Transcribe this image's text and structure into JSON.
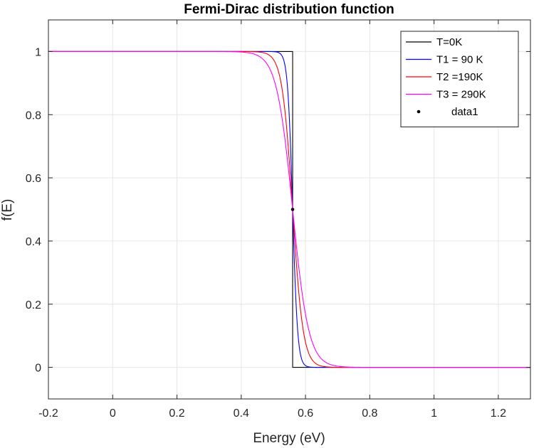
{
  "chart_data": {
    "type": "line",
    "title": "Fermi-Dirac distribution function",
    "xlabel": "Energy (eV)",
    "ylabel": "f(E)",
    "xlim": [
      -0.2,
      1.3
    ],
    "ylim": [
      -0.1,
      1.1
    ],
    "xticks": [
      -0.2,
      0,
      0.2,
      0.4,
      0.6,
      0.8,
      1,
      1.2
    ],
    "xtick_labels": [
      "-0.2",
      "0",
      "0.2",
      "0.4",
      "0.6",
      "0.8",
      "1",
      "1.2"
    ],
    "yticks": [
      0,
      0.2,
      0.4,
      0.6,
      0.8,
      1
    ],
    "ytick_labels": [
      "0",
      "0.2",
      "0.4",
      "0.6",
      "0.8",
      "1"
    ],
    "grid": true,
    "legend_position": "top-right",
    "fermi_energy_eV": 0.56,
    "series": [
      {
        "name": "T=0K",
        "temperature_K": 0,
        "color": "#000000"
      },
      {
        "name": " T1 = 90 K",
        "temperature_K": 90,
        "color": "#0000ff"
      },
      {
        "name": " T2 =190K",
        "temperature_K": 190,
        "color": "#ff0000"
      },
      {
        "name": "T3 = 290K",
        "temperature_K": 290,
        "color": "#ff00ff"
      }
    ],
    "points": [
      {
        "name": "data1",
        "x": 0.56,
        "y": 0.5,
        "color": "#000000"
      }
    ]
  }
}
